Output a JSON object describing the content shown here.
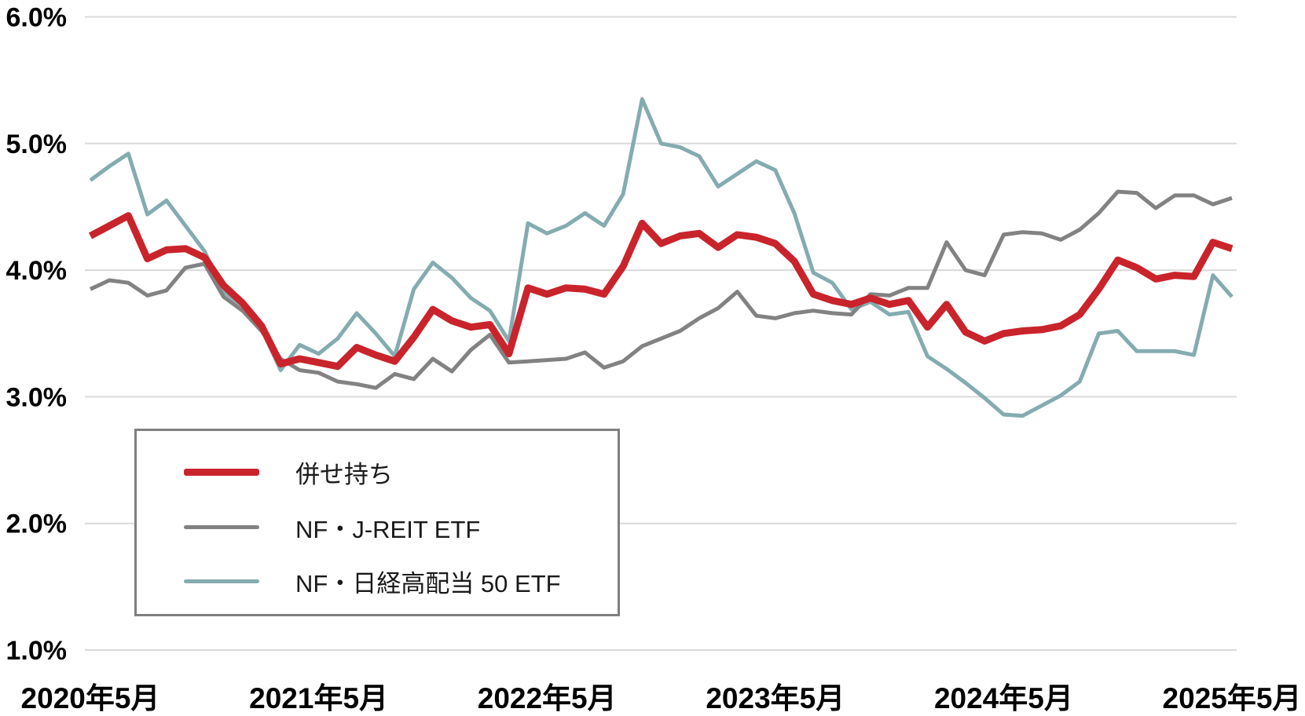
{
  "chart_data": {
    "type": "line",
    "title": "",
    "xlabel": "",
    "ylabel": "",
    "grid": true,
    "gridline_color": "#dadada",
    "background_color": "#ffffff",
    "legend_position": "inside-bottom-left",
    "legend_border_color": "#7f7f7f",
    "y_axis": {
      "min": 1.0,
      "max": 6.0,
      "unit": "%",
      "tick_values": [
        6.0,
        5.0,
        4.0,
        3.0,
        2.0,
        1.0
      ],
      "tick_labels": [
        "6.0%",
        "5.0%",
        "4.0%",
        "3.0%",
        "2.0%",
        "1.0%"
      ]
    },
    "x_axis": {
      "tick_month_indices": [
        0,
        12,
        24,
        36,
        48,
        60
      ],
      "tick_labels": [
        "2020年5月",
        "2021年5月",
        "2022年5月",
        "2023年5月",
        "2024年5月",
        "2025年5月"
      ]
    },
    "x": [
      "2020-05",
      "2020-06",
      "2020-07",
      "2020-08",
      "2020-09",
      "2020-10",
      "2020-11",
      "2020-12",
      "2021-01",
      "2021-02",
      "2021-03",
      "2021-04",
      "2021-05",
      "2021-06",
      "2021-07",
      "2021-08",
      "2021-09",
      "2021-10",
      "2021-11",
      "2021-12",
      "2022-01",
      "2022-02",
      "2022-03",
      "2022-04",
      "2022-05",
      "2022-06",
      "2022-07",
      "2022-08",
      "2022-09",
      "2022-10",
      "2022-11",
      "2022-12",
      "2023-01",
      "2023-02",
      "2023-03",
      "2023-04",
      "2023-05",
      "2023-06",
      "2023-07",
      "2023-08",
      "2023-09",
      "2023-10",
      "2023-11",
      "2023-12",
      "2024-01",
      "2024-02",
      "2024-03",
      "2024-04",
      "2024-05",
      "2024-06",
      "2024-07",
      "2024-08",
      "2024-09",
      "2024-10",
      "2024-11",
      "2024-12",
      "2025-01",
      "2025-02",
      "2025-03",
      "2025-04",
      "2025-05"
    ],
    "series": [
      {
        "name": "併せ持ち",
        "color": "#c9242b",
        "stroke_width": 9,
        "values": [
          4.27,
          4.35,
          4.43,
          4.09,
          4.16,
          4.17,
          4.1,
          3.88,
          3.74,
          3.56,
          3.26,
          3.3,
          3.27,
          3.24,
          3.39,
          3.33,
          3.28,
          3.47,
          3.69,
          3.6,
          3.55,
          3.57,
          3.34,
          3.86,
          3.81,
          3.86,
          3.85,
          3.81,
          4.03,
          4.37,
          4.21,
          4.27,
          4.29,
          4.18,
          4.28,
          4.26,
          4.21,
          4.07,
          3.81,
          3.76,
          3.73,
          3.78,
          3.73,
          3.76,
          3.55,
          3.73,
          3.51,
          3.44,
          3.5,
          3.52,
          3.53,
          3.56,
          3.65,
          3.85,
          4.08,
          4.02,
          3.93,
          3.96,
          3.95,
          4.22,
          4.17
        ]
      },
      {
        "name": "NF・J-REIT ETF",
        "color": "#828282",
        "stroke_width": 5,
        "values": [
          3.85,
          3.92,
          3.9,
          3.8,
          3.84,
          4.02,
          4.05,
          3.79,
          3.68,
          3.52,
          3.3,
          3.21,
          3.19,
          3.12,
          3.1,
          3.07,
          3.18,
          3.14,
          3.3,
          3.2,
          3.37,
          3.49,
          3.27,
          3.28,
          3.29,
          3.3,
          3.35,
          3.23,
          3.28,
          3.4,
          3.46,
          3.52,
          3.62,
          3.7,
          3.83,
          3.64,
          3.62,
          3.66,
          3.68,
          3.66,
          3.65,
          3.81,
          3.8,
          3.86,
          3.86,
          4.22,
          4.0,
          3.96,
          4.28,
          4.3,
          4.29,
          4.24,
          4.32,
          4.45,
          4.62,
          4.61,
          4.49,
          4.59,
          4.59,
          4.52,
          4.57
        ]
      },
      {
        "name": "NF・日経高配当 50 ETF",
        "color": "#84acb0",
        "stroke_width": 5,
        "values": [
          4.71,
          4.82,
          4.92,
          4.44,
          4.55,
          4.35,
          4.15,
          3.83,
          3.72,
          3.54,
          3.21,
          3.41,
          3.34,
          3.46,
          3.66,
          3.5,
          3.32,
          3.85,
          4.06,
          3.94,
          3.78,
          3.68,
          3.44,
          4.37,
          4.29,
          4.35,
          4.45,
          4.35,
          4.6,
          5.35,
          5.0,
          4.97,
          4.9,
          4.66,
          4.76,
          4.86,
          4.79,
          4.45,
          3.98,
          3.9,
          3.69,
          3.75,
          3.65,
          3.67,
          3.32,
          3.22,
          3.11,
          2.99,
          2.86,
          2.85,
          2.93,
          3.01,
          3.12,
          3.5,
          3.52,
          3.36,
          3.36,
          3.36,
          3.33,
          3.96,
          3.79
        ]
      }
    ]
  },
  "legend": {
    "items": [
      {
        "label": "併せ持ち"
      },
      {
        "label": "NF・J-REIT ETF"
      },
      {
        "label": "NF・日経高配当 50 ETF"
      }
    ]
  }
}
